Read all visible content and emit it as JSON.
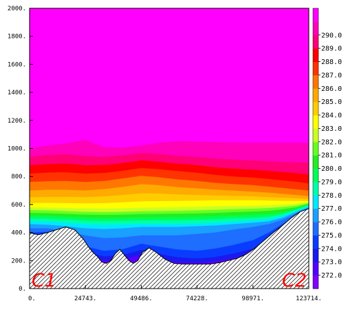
{
  "chart_data": {
    "type": "heatmap",
    "title": "",
    "xlabel": "",
    "ylabel": "",
    "xlim": [
      0,
      123714
    ],
    "ylim": [
      0,
      2000
    ],
    "x_tick_labels": [
      "0.",
      "24743.",
      "49486.",
      "74228.",
      "98971.",
      "123714."
    ],
    "x_ticks": [
      0,
      24743,
      49486,
      74228,
      98971,
      123714
    ],
    "y_tick_labels": [
      "0.",
      "200.",
      "400.",
      "600.",
      "800.",
      "1000.",
      "1200.",
      "1400.",
      "1600.",
      "1800.",
      "2000."
    ],
    "y_ticks": [
      0,
      200,
      400,
      600,
      800,
      1000,
      1200,
      1400,
      1600,
      1800,
      2000
    ],
    "colorbar": {
      "placement": "right",
      "levels": [
        272.0,
        273.0,
        274.0,
        275.0,
        276.0,
        277.0,
        278.0,
        279.0,
        280.0,
        281.0,
        282.0,
        283.0,
        284.0,
        285.0,
        286.0,
        287.0,
        288.0,
        289.0,
        290.0
      ],
      "labels": [
        "272.0",
        "273.0",
        "274.0",
        "275.0",
        "276.0",
        "277.0",
        "278.0",
        "279.0",
        "280.0",
        "281.0",
        "282.0",
        "283.0",
        "284.0",
        "285.0",
        "286.0",
        "287.0",
        "288.0",
        "289.0",
        "290.0"
      ],
      "colors": [
        "#8000ff",
        "#5500ff",
        "#1a1aee",
        "#0a3cff",
        "#1e6eff",
        "#1aa0ff",
        "#00e8ff",
        "#00ffaa",
        "#00ff55",
        "#22ee22",
        "#66ff22",
        "#ccff22",
        "#ffff00",
        "#ffcc00",
        "#ffaa00",
        "#ff7700",
        "#ff3300",
        "#ff0000",
        "#ff0077",
        "#ff00bb",
        "#ff00ff"
      ]
    },
    "isotherm_x": [
      0,
      8000,
      16000,
      24743,
      33000,
      41000,
      49486,
      57000,
      65000,
      74228,
      82000,
      90000,
      98971,
      106000,
      112000,
      118000,
      123714
    ],
    "isotherms": [
      {
        "level": 272.0,
        "y": [
          360,
          370,
          310,
          230,
          200,
          210,
          240,
          210,
          190,
          185,
          195,
          215,
          250,
          310,
          390,
          470,
          540
        ]
      },
      {
        "level": 273.0,
        "y": [
          380,
          385,
          330,
          260,
          230,
          240,
          275,
          250,
          225,
          215,
          225,
          250,
          285,
          350,
          430,
          500,
          555
        ]
      },
      {
        "level": 274.0,
        "y": [
          400,
          405,
          360,
          300,
          270,
          280,
          320,
          300,
          280,
          270,
          285,
          310,
          345,
          400,
          460,
          520,
          565
        ]
      },
      {
        "level": 275.0,
        "y": [
          430,
          430,
          410,
          380,
          360,
          365,
          380,
          380,
          380,
          390,
          400,
          420,
          440,
          460,
          490,
          535,
          575
        ]
      },
      {
        "level": 276.0,
        "y": [
          460,
          455,
          445,
          430,
          425,
          430,
          440,
          440,
          440,
          445,
          450,
          460,
          470,
          480,
          505,
          545,
          582
        ]
      },
      {
        "level": 277.0,
        "y": [
          480,
          478,
          470,
          460,
          455,
          458,
          462,
          462,
          462,
          465,
          470,
          478,
          485,
          495,
          520,
          555,
          590
        ]
      },
      {
        "level": 278.0,
        "y": [
          500,
          498,
          492,
          485,
          482,
          484,
          486,
          487,
          488,
          490,
          494,
          500,
          506,
          512,
          530,
          562,
          596
        ]
      },
      {
        "level": 279.0,
        "y": [
          520,
          518,
          512,
          506,
          503,
          505,
          508,
          509,
          510,
          512,
          516,
          521,
          527,
          533,
          545,
          568,
          600
        ]
      },
      {
        "level": 280.0,
        "y": [
          540,
          538,
          533,
          528,
          526,
          528,
          532,
          533,
          534,
          536,
          540,
          545,
          550,
          555,
          565,
          580,
          605
        ]
      },
      {
        "level": 281.0,
        "y": [
          560,
          558,
          553,
          548,
          546,
          548,
          552,
          553,
          555,
          558,
          562,
          566,
          570,
          575,
          582,
          592,
          610
        ]
      },
      {
        "level": 282.0,
        "y": [
          580,
          578,
          575,
          572,
          570,
          573,
          578,
          580,
          582,
          585,
          588,
          590,
          592,
          595,
          600,
          605,
          615
        ]
      },
      {
        "level": 283.0,
        "y": [
          610,
          612,
          610,
          608,
          610,
          615,
          622,
          624,
          625,
          628,
          630,
          630,
          630,
          628,
          626,
          625,
          625
        ]
      },
      {
        "level": 284.0,
        "y": [
          650,
          655,
          655,
          652,
          658,
          668,
          680,
          678,
          672,
          668,
          665,
          662,
          658,
          652,
          648,
          644,
          640
        ]
      },
      {
        "level": 285.0,
        "y": [
          700,
          705,
          705,
          700,
          710,
          725,
          745,
          738,
          725,
          715,
          706,
          700,
          692,
          684,
          676,
          668,
          660
        ]
      },
      {
        "level": 286.0,
        "y": [
          760,
          766,
          768,
          760,
          768,
          785,
          805,
          795,
          780,
          768,
          755,
          746,
          738,
          728,
          718,
          708,
          700
        ]
      },
      {
        "level": 287.0,
        "y": [
          820,
          828,
          830,
          820,
          825,
          840,
          860,
          852,
          840,
          826,
          812,
          800,
          792,
          782,
          772,
          762,
          750
        ]
      },
      {
        "level": 288.0,
        "y": [
          880,
          888,
          892,
          880,
          882,
          895,
          915,
          905,
          892,
          880,
          866,
          856,
          848,
          840,
          832,
          824,
          815
        ]
      },
      {
        "level": 289.0,
        "y": [
          940,
          952,
          958,
          945,
          940,
          950,
          968,
          960,
          948,
          938,
          928,
          920,
          914,
          908,
          903,
          900,
          898
        ]
      },
      {
        "level": 290.0,
        "y": [
          1000,
          1020,
          1035,
          1060,
          1010,
          1005,
          1020,
          1040,
          1050,
          1048,
          1045,
          1042,
          1040,
          1040,
          1040,
          1040,
          1040
        ]
      }
    ],
    "terrain_x": [
      0,
      2000,
      4000,
      8000,
      12000,
      16000,
      20000,
      24000,
      26000,
      28000,
      30000,
      32000,
      34000,
      36000,
      38000,
      40000,
      42000,
      44000,
      46000,
      48000,
      50000,
      53000,
      56000,
      60000,
      64000,
      68000,
      72000,
      76000,
      80000,
      84000,
      88000,
      92000,
      96000,
      100000,
      104000,
      108000,
      112000,
      116000,
      120000,
      123714
    ],
    "terrain_y": [
      400,
      390,
      385,
      400,
      420,
      440,
      420,
      350,
      300,
      260,
      230,
      190,
      180,
      200,
      250,
      280,
      240,
      200,
      180,
      200,
      260,
      290,
      260,
      210,
      180,
      175,
      175,
      175,
      175,
      185,
      200,
      215,
      245,
      290,
      345,
      400,
      450,
      505,
      550,
      570
    ],
    "annotations": [
      {
        "text": "C1",
        "position": "bottom-left"
      },
      {
        "text": "C2",
        "position": "bottom-right"
      }
    ]
  }
}
